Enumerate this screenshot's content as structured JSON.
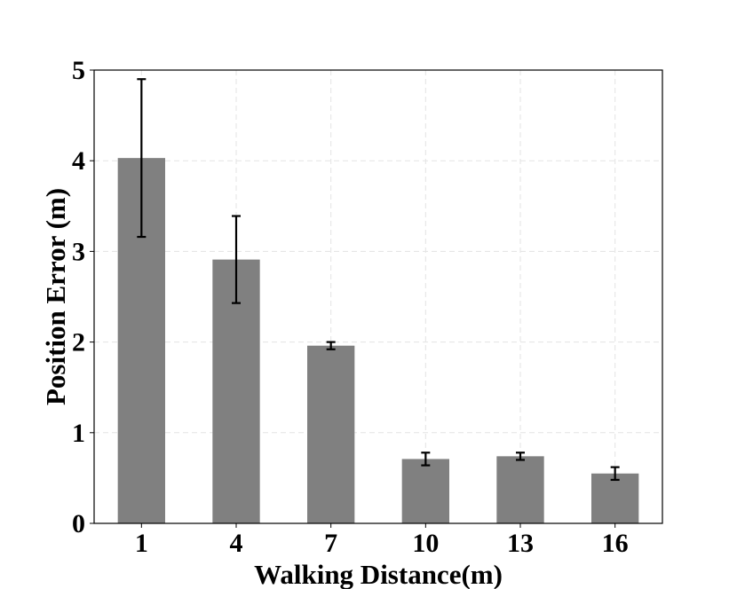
{
  "chart_data": {
    "type": "bar",
    "title": "",
    "xlabel": "Walking Distance(m)",
    "ylabel": "Position Error (m)",
    "categories": [
      "1",
      "4",
      "7",
      "10",
      "13",
      "16"
    ],
    "values": [
      4.03,
      2.91,
      1.96,
      0.71,
      0.74,
      0.55
    ],
    "errors": [
      0.87,
      0.48,
      0.04,
      0.07,
      0.04,
      0.07
    ],
    "ylim": [
      0,
      5
    ],
    "yticks": [
      "0",
      "1",
      "2",
      "3",
      "4",
      "5"
    ],
    "grid": true,
    "colors": {
      "bar": "#808080",
      "error_bar": "#000000",
      "grid": "#e3e3e3",
      "axis": "#000000"
    }
  }
}
